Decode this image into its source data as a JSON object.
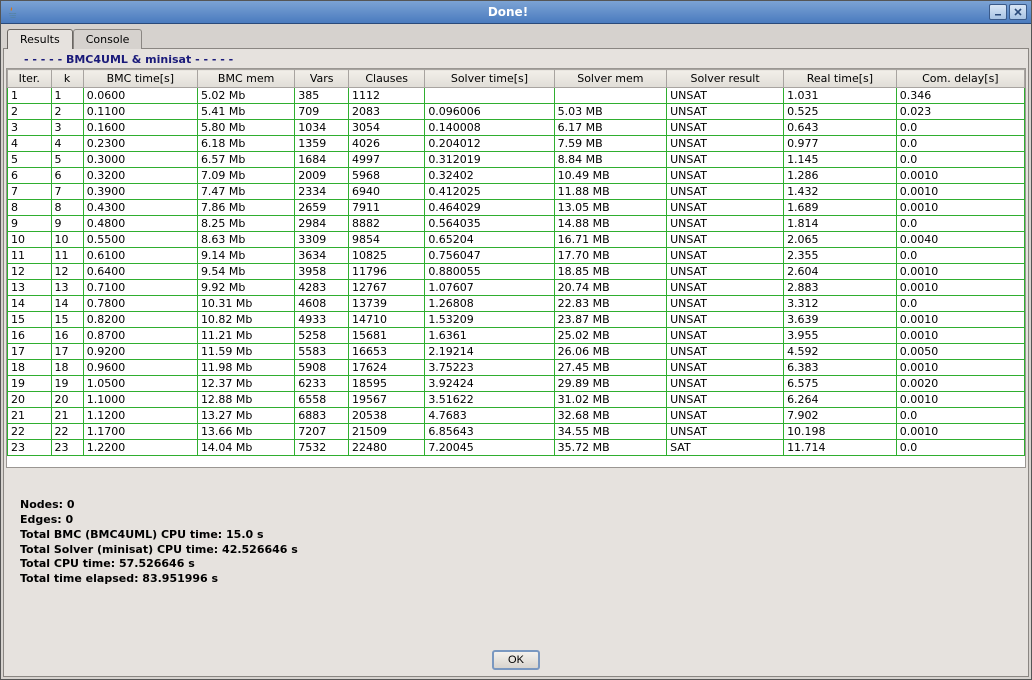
{
  "window": {
    "title": "Done!"
  },
  "tabs": {
    "results": "Results",
    "console": "Console"
  },
  "panel_title": "-  -  -  -  -  BMC4UML & minisat  -  -  -  -  -",
  "table": {
    "columns": [
      "Iter.",
      "k",
      "BMC time[s]",
      "BMC mem",
      "Vars",
      "Clauses",
      "Solver time[s]",
      "Solver mem",
      "Solver result",
      "Real time[s]",
      "Com. delay[s]"
    ],
    "rows": [
      [
        "1",
        "1",
        "0.0600",
        "5.02 Mb",
        "385",
        "1112",
        "",
        "",
        "UNSAT",
        "1.031",
        "0.346"
      ],
      [
        "2",
        "2",
        "0.1100",
        "5.41 Mb",
        "709",
        "2083",
        "0.096006",
        "5.03 MB",
        "UNSAT",
        "0.525",
        "0.023"
      ],
      [
        "3",
        "3",
        "0.1600",
        "5.80 Mb",
        "1034",
        "3054",
        "0.140008",
        "6.17 MB",
        "UNSAT",
        "0.643",
        "0.0"
      ],
      [
        "4",
        "4",
        "0.2300",
        "6.18 Mb",
        "1359",
        "4026",
        "0.204012",
        "7.59 MB",
        "UNSAT",
        "0.977",
        "0.0"
      ],
      [
        "5",
        "5",
        "0.3000",
        "6.57 Mb",
        "1684",
        "4997",
        "0.312019",
        "8.84 MB",
        "UNSAT",
        "1.145",
        "0.0"
      ],
      [
        "6",
        "6",
        "0.3200",
        "7.09 Mb",
        "2009",
        "5968",
        "0.32402",
        "10.49 MB",
        "UNSAT",
        "1.286",
        "0.0010"
      ],
      [
        "7",
        "7",
        "0.3900",
        "7.47 Mb",
        "2334",
        "6940",
        "0.412025",
        "11.88 MB",
        "UNSAT",
        "1.432",
        "0.0010"
      ],
      [
        "8",
        "8",
        "0.4300",
        "7.86 Mb",
        "2659",
        "7911",
        "0.464029",
        "13.05 MB",
        "UNSAT",
        "1.689",
        "0.0010"
      ],
      [
        "9",
        "9",
        "0.4800",
        "8.25 Mb",
        "2984",
        "8882",
        "0.564035",
        "14.88 MB",
        "UNSAT",
        "1.814",
        "0.0"
      ],
      [
        "10",
        "10",
        "0.5500",
        "8.63 Mb",
        "3309",
        "9854",
        "0.65204",
        "16.71 MB",
        "UNSAT",
        "2.065",
        "0.0040"
      ],
      [
        "11",
        "11",
        "0.6100",
        "9.14 Mb",
        "3634",
        "10825",
        "0.756047",
        "17.70 MB",
        "UNSAT",
        "2.355",
        "0.0"
      ],
      [
        "12",
        "12",
        "0.6400",
        "9.54 Mb",
        "3958",
        "11796",
        "0.880055",
        "18.85 MB",
        "UNSAT",
        "2.604",
        "0.0010"
      ],
      [
        "13",
        "13",
        "0.7100",
        "9.92 Mb",
        "4283",
        "12767",
        "1.07607",
        "20.74 MB",
        "UNSAT",
        "2.883",
        "0.0010"
      ],
      [
        "14",
        "14",
        "0.7800",
        "10.31 Mb",
        "4608",
        "13739",
        "1.26808",
        "22.83 MB",
        "UNSAT",
        "3.312",
        "0.0"
      ],
      [
        "15",
        "15",
        "0.8200",
        "10.82 Mb",
        "4933",
        "14710",
        "1.53209",
        "23.87 MB",
        "UNSAT",
        "3.639",
        "0.0010"
      ],
      [
        "16",
        "16",
        "0.8700",
        "11.21 Mb",
        "5258",
        "15681",
        "1.6361",
        "25.02 MB",
        "UNSAT",
        "3.955",
        "0.0010"
      ],
      [
        "17",
        "17",
        "0.9200",
        "11.59 Mb",
        "5583",
        "16653",
        "2.19214",
        "26.06 MB",
        "UNSAT",
        "4.592",
        "0.0050"
      ],
      [
        "18",
        "18",
        "0.9600",
        "11.98 Mb",
        "5908",
        "17624",
        "3.75223",
        "27.45 MB",
        "UNSAT",
        "6.383",
        "0.0010"
      ],
      [
        "19",
        "19",
        "1.0500",
        "12.37 Mb",
        "6233",
        "18595",
        "3.92424",
        "29.89 MB",
        "UNSAT",
        "6.575",
        "0.0020"
      ],
      [
        "20",
        "20",
        "1.1000",
        "12.88 Mb",
        "6558",
        "19567",
        "3.51622",
        "31.02 MB",
        "UNSAT",
        "6.264",
        "0.0010"
      ],
      [
        "21",
        "21",
        "1.1200",
        "13.27 Mb",
        "6883",
        "20538",
        "4.7683",
        "32.68 MB",
        "UNSAT",
        "7.902",
        "0.0"
      ],
      [
        "22",
        "22",
        "1.1700",
        "13.66 Mb",
        "7207",
        "21509",
        "6.85643",
        "34.55 MB",
        "UNSAT",
        "10.198",
        "0.0010"
      ],
      [
        "23",
        "23",
        "1.2200",
        "14.04 Mb",
        "7532",
        "22480",
        "7.20045",
        "35.72 MB",
        "SAT",
        "11.714",
        "0.0"
      ]
    ]
  },
  "summary": {
    "lines": [
      "Nodes: 0",
      "Edges: 0",
      "Total BMC (BMC4UML) CPU time: 15.0 s",
      "Total Solver (minisat) CPU time: 42.526646 s",
      "Total CPU time: 57.526646 s",
      "Total time elapsed: 83.951996 s"
    ]
  },
  "buttons": {
    "ok": "OK"
  },
  "colors": {
    "titlebar_top": "#7ca3d4",
    "titlebar_bottom": "#4a7bbf",
    "table_border": "#2fae2f",
    "panel_bg": "#e6e2de"
  }
}
